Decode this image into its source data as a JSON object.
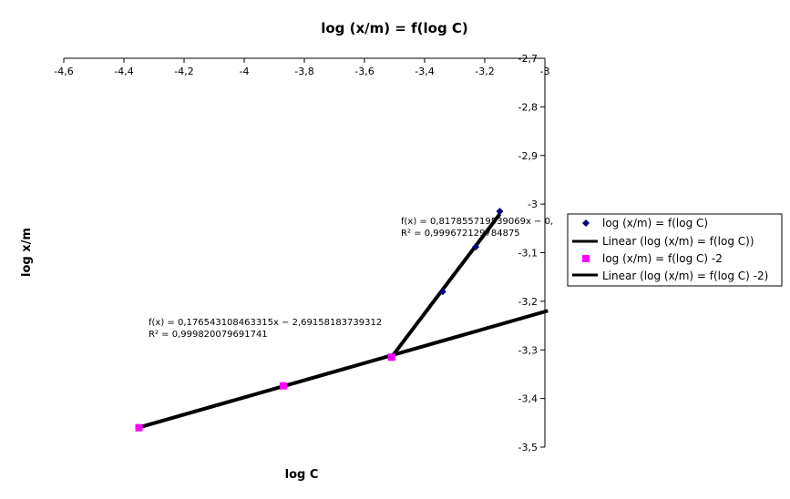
{
  "chart_data": {
    "type": "scatter",
    "title": "log (x/m) = f(log C)",
    "xlabel": "log C",
    "ylabel": "log x/m",
    "xlim": [
      -4.6,
      -3.0
    ],
    "ylim": [
      -3.5,
      -2.7
    ],
    "x_ticks": [
      "-4,6",
      "-4,4",
      "-4,2",
      "-4",
      "-3,8",
      "-3,6",
      "-3,4",
      "-3,2",
      "-3"
    ],
    "y_ticks": [
      "-2,7",
      "-2,8",
      "-2,9",
      "-3",
      "-3,1",
      "-3,2",
      "-3,3",
      "-3,4",
      "-3,5"
    ],
    "legend_position": "right",
    "grid": false,
    "series": [
      {
        "name": "log (x/m) = f(log C)",
        "color": "#000080",
        "marker": "diamond",
        "x": [
          -3.51,
          -3.34,
          -3.23,
          -3.15
        ],
        "y": [
          -3.315,
          -3.18,
          -3.088,
          -3.015
        ]
      },
      {
        "name": "log (x/m) = f(log C) -2",
        "color": "#ff00ff",
        "marker": "square",
        "x": [
          -4.35,
          -3.87,
          -3.51
        ],
        "y": [
          -3.46,
          -3.374,
          -3.315
        ]
      }
    ],
    "trendlines": [
      {
        "name": "Linear (log (x/m) = f(log C))",
        "color": "#000000",
        "slope": 0.817855719539069,
        "x_range": [
          -3.51,
          -3.15
        ],
        "equation": "f(x) = 0,817855719539069x − 0,",
        "r2": "R² = 0,999672129784875"
      },
      {
        "name": "Linear (log (x/m) = f(log C) -2)",
        "color": "#000000",
        "slope": 0.176543108463315,
        "intercept": -2.69158183739312,
        "x_range": [
          -4.35,
          -2.99
        ],
        "equation": "f(x) = 0,176543108463315x − 2,69158183739312",
        "r2": "R² = 0,999820079691741"
      }
    ]
  }
}
